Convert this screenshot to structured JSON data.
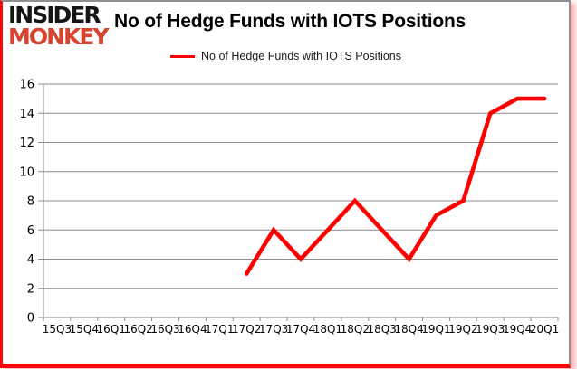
{
  "logo": {
    "line1": "INSIDER",
    "line2": "MONKEY"
  },
  "header": {
    "title": "No of Hedge Funds with IOTS Positions"
  },
  "legend": {
    "label": "No of Hedge Funds with IOTS Positions",
    "line_color": "#ff0000"
  },
  "chart_data": {
    "type": "line",
    "title": "No of Hedge Funds with IOTS Positions",
    "categories": [
      "15Q3",
      "15Q4",
      "16Q1",
      "16Q2",
      "16Q3",
      "16Q4",
      "17Q1",
      "17Q2",
      "17Q3",
      "17Q4",
      "18Q1",
      "18Q2",
      "18Q3",
      "18Q4",
      "19Q1",
      "19Q2",
      "19Q3",
      "19Q4",
      "20Q1"
    ],
    "series": [
      {
        "name": "No of Hedge Funds with IOTS Positions",
        "color": "#ff0000",
        "values": [
          null,
          null,
          null,
          null,
          null,
          null,
          null,
          3,
          6,
          4,
          6,
          8,
          6,
          4,
          7,
          8,
          14,
          15,
          15
        ]
      }
    ],
    "xlabel": "",
    "ylabel": "",
    "ylim": [
      0,
      16
    ],
    "ytick_step": 2,
    "grid": true,
    "legend_position": "top",
    "grid_color": "#8c8c8c",
    "axis_color": "#8c8c8c",
    "tick_label_color": "#000000"
  }
}
